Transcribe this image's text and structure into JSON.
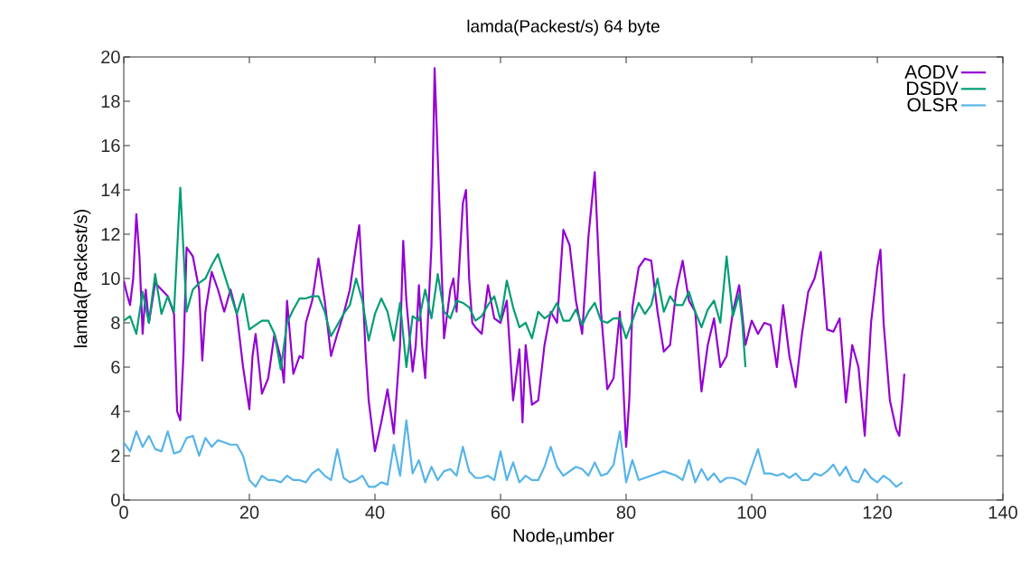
{
  "chart_data": {
    "type": "line",
    "title": "lamda(Packest/s) 64 byte",
    "xlabel": "Node$_{n}$umber",
    "ylabel": "lamda(Packest/s)",
    "xlim": [
      0,
      140
    ],
    "xticks": [
      0,
      20,
      40,
      60,
      80,
      100,
      120,
      140
    ],
    "ylim": [
      0,
      20
    ],
    "yticks": [
      0,
      2,
      4,
      6,
      8,
      10,
      12,
      14,
      16,
      18,
      20
    ],
    "grid": false,
    "legend": "top right",
    "series": [
      {
        "name": "AODV",
        "color": "#9400d3",
        "x": [
          0,
          0.5,
          1,
          1.5,
          2,
          2.5,
          3,
          3.5,
          4,
          5,
          6,
          7,
          8,
          8.5,
          9,
          9.5,
          10,
          11,
          12,
          12.5,
          13,
          14,
          15,
          16,
          17,
          18,
          19,
          20,
          20.5,
          21,
          22,
          23,
          24,
          25,
          25.5,
          26,
          27,
          28,
          28.5,
          29,
          30,
          31,
          32,
          33,
          34,
          35,
          36,
          37,
          37.5,
          38,
          38.5,
          39,
          40,
          41,
          42,
          42.5,
          43,
          44,
          44.5,
          45,
          46,
          46.5,
          47,
          47.5,
          48,
          49,
          49.5,
          50,
          51,
          52,
          52.5,
          53,
          54,
          54.5,
          55,
          55.5,
          56,
          57,
          58,
          59,
          60,
          61,
          62,
          63,
          63.5,
          64,
          65,
          66,
          67,
          68,
          69,
          70,
          71,
          72,
          73,
          74,
          75,
          76,
          77,
          78,
          79,
          80,
          80.5,
          81,
          82,
          83,
          84,
          85,
          86,
          87,
          88,
          89,
          90,
          91,
          92,
          93,
          94,
          95,
          96,
          97,
          98,
          99,
          100,
          101,
          102,
          103,
          104,
          105,
          106,
          107,
          108,
          109,
          110,
          111,
          112,
          113,
          114,
          115,
          116,
          117,
          118,
          119,
          120,
          120.5,
          121,
          122,
          123,
          123.5,
          124,
          124.3
        ],
        "values": [
          9.9,
          9.3,
          8.8,
          10,
          12.9,
          11,
          7.5,
          9.5,
          8,
          9.8,
          9.5,
          9.2,
          8.4,
          4,
          3.6,
          6.5,
          11.4,
          11,
          9.5,
          6.3,
          8.5,
          10.3,
          9.5,
          8.5,
          9.5,
          8.4,
          6,
          4.1,
          6.5,
          7.5,
          4.8,
          5.5,
          7.5,
          6.4,
          5.3,
          9,
          5.7,
          6.5,
          6.4,
          8,
          9,
          10.9,
          9,
          6.5,
          7.5,
          8.4,
          9.5,
          11.5,
          12.4,
          9.8,
          6.7,
          4.5,
          2.2,
          3.5,
          5,
          4,
          3,
          7,
          11.7,
          9,
          5.8,
          7,
          9.7,
          7,
          5.5,
          11.5,
          19.5,
          15.5,
          7.3,
          9.5,
          10,
          8.5,
          13.4,
          14,
          10,
          8,
          7.8,
          7.5,
          9.7,
          8.2,
          8,
          9,
          4.5,
          6.8,
          3.5,
          7,
          4.3,
          4.5,
          7,
          8.5,
          8,
          12.2,
          11.5,
          9,
          7.5,
          11.9,
          14.8,
          8.5,
          5,
          5.5,
          8.5,
          2.4,
          4.5,
          8.7,
          10.5,
          10.9,
          10.8,
          8.5,
          6.7,
          7,
          9.5,
          10.8,
          9,
          8.5,
          4.9,
          7,
          8.2,
          6,
          6.5,
          8.5,
          9.7,
          7,
          8.1,
          7.5,
          8,
          7.9,
          6,
          8.8,
          6.5,
          5.1,
          7.5,
          9.4,
          10,
          11.2,
          7.7,
          7.6,
          8.2,
          4.4,
          7,
          6,
          2.9,
          8,
          10.5,
          11.3,
          8,
          4.5,
          3.2,
          2.9,
          4.5,
          5.7
        ]
      },
      {
        "name": "DSDV",
        "color": "#009e73",
        "x": [
          0,
          1,
          2,
          3,
          4,
          5,
          6,
          7,
          8,
          9,
          10,
          11,
          12,
          13,
          14,
          15,
          16,
          17,
          18,
          19,
          20,
          21,
          22,
          23,
          24,
          25,
          26,
          27,
          28,
          29,
          30,
          31,
          32,
          33,
          34,
          35,
          36,
          37,
          38,
          39,
          40,
          41,
          42,
          43,
          44,
          45,
          46,
          47,
          48,
          49,
          50,
          51,
          52,
          53,
          54,
          55,
          56,
          57,
          58,
          59,
          60,
          61,
          62,
          63,
          64,
          65,
          66,
          67,
          68,
          69,
          70,
          71,
          72,
          73,
          74,
          75,
          76,
          77,
          78,
          79,
          80,
          81,
          82,
          83,
          84,
          85,
          86,
          87,
          88,
          89,
          90,
          91,
          92,
          93,
          94,
          95,
          96,
          97,
          98,
          98.5,
          99
        ],
        "values": [
          8.1,
          8.3,
          7.5,
          9.4,
          8,
          10.2,
          8.4,
          9.2,
          8.5,
          14.1,
          8.5,
          9.5,
          9.8,
          10,
          10.6,
          11.1,
          10.2,
          9.3,
          8.4,
          9.3,
          7.7,
          7.9,
          8.1,
          8.1,
          7.5,
          5.9,
          8,
          8.6,
          9.1,
          9.1,
          9.2,
          9.2,
          8.5,
          7.4,
          7.9,
          8.4,
          8.8,
          10,
          9,
          7.2,
          8.4,
          9.1,
          8.5,
          7.2,
          8.9,
          6,
          8.3,
          8.1,
          9.5,
          8.2,
          10.2,
          8.5,
          8.2,
          9,
          8.9,
          8.7,
          8.1,
          8.3,
          8.8,
          9.2,
          8.1,
          9.9,
          8.7,
          7.8,
          8,
          7.3,
          8.5,
          8.2,
          8.4,
          8.9,
          8.1,
          8.1,
          8.6,
          7.9,
          8.5,
          8.9,
          8.1,
          8,
          8.2,
          8.2,
          7.3,
          8.1,
          8.9,
          8.4,
          8.8,
          10,
          8.5,
          9.2,
          8.8,
          8.8,
          9.4,
          8.5,
          7.8,
          8.6,
          9,
          8,
          11,
          8.3,
          9.3,
          8,
          6
        ]
      },
      {
        "name": "OLSR",
        "color": "#56b4e9",
        "x": [
          0,
          1,
          2,
          3,
          4,
          5,
          6,
          7,
          8,
          9,
          10,
          11,
          12,
          13,
          14,
          15,
          16,
          17,
          18,
          19,
          20,
          21,
          22,
          23,
          24,
          25,
          26,
          27,
          28,
          29,
          30,
          31,
          32,
          33,
          34,
          35,
          36,
          37,
          38,
          39,
          40,
          41,
          42,
          43,
          44,
          45,
          46,
          47,
          48,
          49,
          50,
          51,
          52,
          53,
          54,
          55,
          56,
          57,
          58,
          59,
          60,
          61,
          62,
          63,
          64,
          65,
          66,
          67,
          68,
          69,
          70,
          71,
          72,
          73,
          74,
          75,
          76,
          77,
          78,
          79,
          80,
          81,
          82,
          83,
          84,
          85,
          86,
          87,
          88,
          89,
          90,
          91,
          92,
          93,
          94,
          95,
          96,
          97,
          98,
          99,
          100,
          101,
          102,
          103,
          104,
          105,
          106,
          107,
          108,
          109,
          110,
          111,
          112,
          113,
          114,
          115,
          116,
          117,
          118,
          119,
          120,
          121,
          122,
          123,
          124
        ],
        "values": [
          2.6,
          2.2,
          3.1,
          2.4,
          2.9,
          2.3,
          2.2,
          3.1,
          2.1,
          2.2,
          2.8,
          2.9,
          2,
          2.8,
          2.4,
          2.7,
          2.6,
          2.5,
          2.5,
          2,
          0.9,
          0.6,
          1.1,
          0.9,
          0.9,
          0.8,
          1.1,
          0.9,
          0.9,
          0.8,
          1.2,
          1.4,
          1.1,
          0.9,
          2.3,
          1,
          0.8,
          0.9,
          1.1,
          0.6,
          0.6,
          0.8,
          0.7,
          2.5,
          1.1,
          3.6,
          1.2,
          1.8,
          0.8,
          1.5,
          0.9,
          1.3,
          1.4,
          1.1,
          2.4,
          1.3,
          1,
          1,
          1.1,
          0.9,
          2.2,
          0.9,
          1.7,
          0.8,
          1.1,
          0.9,
          0.9,
          1.5,
          2.4,
          1.5,
          1.1,
          1.3,
          1.5,
          1.4,
          1.1,
          1.7,
          1.1,
          1.2,
          1.6,
          3.1,
          0.8,
          1.8,
          0.9,
          1,
          1.1,
          1.2,
          1.3,
          1.2,
          1.1,
          0.9,
          1.8,
          0.8,
          1.4,
          0.9,
          1.2,
          0.8,
          1,
          1,
          0.9,
          0.7,
          1.5,
          2.3,
          1.2,
          1.2,
          1.1,
          1.2,
          1,
          1.2,
          0.9,
          0.9,
          1.2,
          1.1,
          1.3,
          1.6,
          1.1,
          1.5,
          0.9,
          0.8,
          1.4,
          1,
          0.8,
          1.1,
          0.9,
          0.6,
          0.8
        ]
      }
    ]
  }
}
